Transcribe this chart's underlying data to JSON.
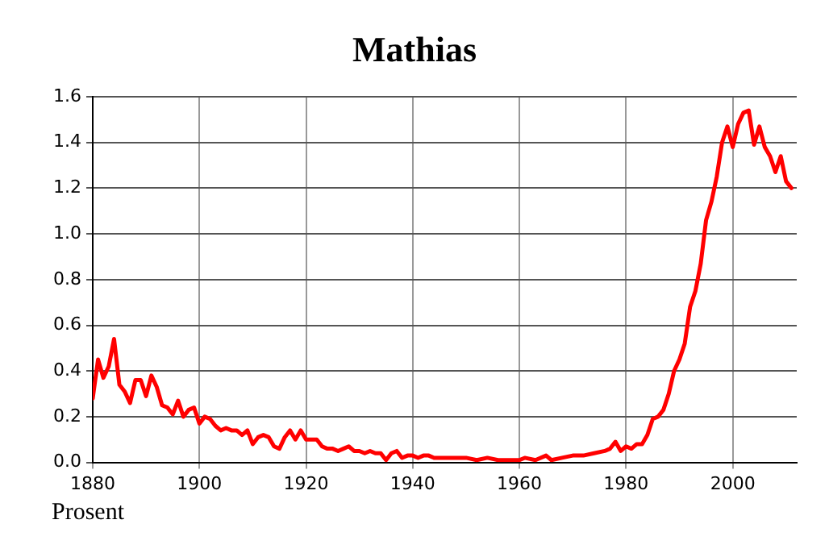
{
  "chart_data": {
    "type": "line",
    "title": "Mathias",
    "annotations": [
      "Prosent"
    ],
    "x": [
      1880,
      1881,
      1882,
      1883,
      1884,
      1885,
      1886,
      1887,
      1888,
      1889,
      1890,
      1891,
      1892,
      1893,
      1894,
      1895,
      1896,
      1897,
      1898,
      1899,
      1900,
      1901,
      1902,
      1903,
      1904,
      1905,
      1906,
      1907,
      1908,
      1909,
      1910,
      1911,
      1912,
      1913,
      1914,
      1915,
      1916,
      1917,
      1918,
      1919,
      1920,
      1921,
      1922,
      1923,
      1924,
      1925,
      1926,
      1927,
      1928,
      1929,
      1930,
      1931,
      1932,
      1933,
      1934,
      1935,
      1936,
      1937,
      1938,
      1939,
      1940,
      1941,
      1942,
      1943,
      1944,
      1945,
      1946,
      1947,
      1948,
      1949,
      1950,
      1952,
      1954,
      1956,
      1958,
      1960,
      1961,
      1963,
      1965,
      1966,
      1968,
      1970,
      1972,
      1974,
      1976,
      1977,
      1978,
      1979,
      1980,
      1981,
      1982,
      1983,
      1984,
      1985,
      1986,
      1987,
      1988,
      1989,
      1990,
      1991,
      1992,
      1993,
      1994,
      1995,
      1996,
      1997,
      1998,
      1999,
      2000,
      2001,
      2002,
      2003,
      2004,
      2005,
      2006,
      2007,
      2008,
      2009,
      2010,
      2011
    ],
    "series": [
      {
        "color": "#ff0000",
        "values": [
          0.28,
          0.45,
          0.37,
          0.42,
          0.54,
          0.34,
          0.31,
          0.26,
          0.36,
          0.36,
          0.29,
          0.38,
          0.33,
          0.25,
          0.24,
          0.21,
          0.27,
          0.2,
          0.23,
          0.24,
          0.17,
          0.2,
          0.19,
          0.16,
          0.14,
          0.15,
          0.14,
          0.14,
          0.12,
          0.14,
          0.08,
          0.11,
          0.12,
          0.11,
          0.07,
          0.06,
          0.11,
          0.14,
          0.1,
          0.14,
          0.1,
          0.1,
          0.1,
          0.07,
          0.06,
          0.06,
          0.05,
          0.06,
          0.07,
          0.05,
          0.05,
          0.04,
          0.05,
          0.04,
          0.04,
          0.01,
          0.04,
          0.05,
          0.02,
          0.03,
          0.03,
          0.02,
          0.03,
          0.03,
          0.02,
          0.02,
          0.02,
          0.02,
          0.02,
          0.02,
          0.02,
          0.01,
          0.02,
          0.01,
          0.01,
          0.01,
          0.02,
          0.01,
          0.03,
          0.01,
          0.02,
          0.03,
          0.03,
          0.04,
          0.05,
          0.06,
          0.09,
          0.05,
          0.07,
          0.06,
          0.08,
          0.08,
          0.12,
          0.19,
          0.2,
          0.23,
          0.3,
          0.4,
          0.45,
          0.52,
          0.68,
          0.75,
          0.87,
          1.06,
          1.14,
          1.25,
          1.4,
          1.47,
          1.38,
          1.48,
          1.53,
          1.54,
          1.39,
          1.47,
          1.38,
          1.34,
          1.27,
          1.34,
          1.23,
          1.2
        ]
      }
    ],
    "xlim": [
      1880,
      2012
    ],
    "xticks": [
      1880,
      1900,
      1920,
      1940,
      1960,
      1980,
      2000
    ],
    "ylim": [
      0,
      1.6
    ],
    "yticks": [
      {
        "value": 0,
        "label": "0.0"
      },
      0.2,
      0.4,
      0.6,
      0.8,
      {
        "value": 1,
        "label": "1.0"
      },
      1.2,
      1.4,
      1.6
    ],
    "grid": true,
    "legend": false,
    "marker": "none",
    "line_style": "solid"
  }
}
